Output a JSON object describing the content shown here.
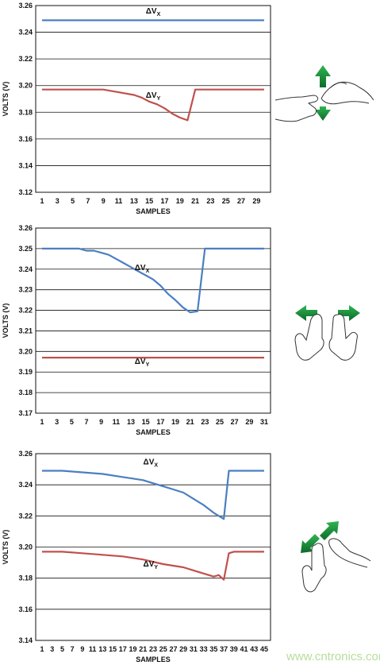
{
  "watermark": "www.cntronics.com",
  "colors": {
    "vx": "#4a7fc1",
    "vy": "#c0504d",
    "grid": "#111111",
    "arrow": "#1c8a3c"
  },
  "gestures": [
    "vertical-drag-gesture",
    "horizontal-pinch-gesture",
    "diagonal-pinch-gesture"
  ],
  "chart_data": [
    {
      "type": "line",
      "xlabel": "SAMPLES",
      "ylabel": "VOLTS (V)",
      "xlim": [
        1,
        30
      ],
      "ylim": [
        3.12,
        3.26
      ],
      "yticks": [
        "3.12",
        "3.14",
        "3.16",
        "3.18",
        "3.20",
        "3.22",
        "3.24",
        "3.26"
      ],
      "xticks": [
        "1",
        "3",
        "5",
        "7",
        "9",
        "11",
        "13",
        "15",
        "17",
        "19",
        "21",
        "23",
        "25",
        "27",
        "29"
      ],
      "series": [
        {
          "name": "ΔV",
          "sub": "X",
          "label_at": [
            15.5,
            3.254
          ],
          "x": [
            1,
            30
          ],
          "y": [
            3.249,
            3.249
          ]
        },
        {
          "name": "ΔV",
          "sub": "Y",
          "label_at": [
            15.5,
            3.191
          ],
          "x": [
            1,
            2,
            3,
            4,
            5,
            6,
            7,
            8,
            9,
            10,
            11,
            12,
            13,
            14,
            15,
            16,
            17,
            18,
            19,
            20,
            21,
            22,
            23,
            24,
            25,
            26,
            27,
            28,
            29,
            30
          ],
          "y": [
            3.197,
            3.197,
            3.197,
            3.197,
            3.197,
            3.197,
            3.197,
            3.197,
            3.197,
            3.196,
            3.195,
            3.194,
            3.193,
            3.191,
            3.188,
            3.186,
            3.183,
            3.179,
            3.176,
            3.174,
            3.197,
            3.197,
            3.197,
            3.197,
            3.197,
            3.197,
            3.197,
            3.197,
            3.197,
            3.197
          ]
        }
      ]
    },
    {
      "type": "line",
      "xlabel": "SAMPLES",
      "ylabel": "VOLTS (V)",
      "xlim": [
        1,
        31
      ],
      "ylim": [
        3.17,
        3.26
      ],
      "yticks": [
        "3.17",
        "3.18",
        "3.19",
        "3.20",
        "3.21",
        "3.22",
        "3.23",
        "3.24",
        "3.25",
        "3.26"
      ],
      "xticks": [
        "1",
        "3",
        "5",
        "7",
        "9",
        "11",
        "13",
        "15",
        "17",
        "19",
        "21",
        "23",
        "25",
        "27",
        "29",
        "31"
      ],
      "series": [
        {
          "name": "ΔV",
          "sub": "X",
          "label_at": [
            14.5,
            3.2395
          ],
          "x": [
            1,
            2,
            3,
            4,
            5,
            6,
            7,
            8,
            9,
            10,
            11,
            12,
            13,
            14,
            15,
            16,
            17,
            18,
            19,
            20,
            21,
            22,
            23,
            24,
            25,
            26,
            27,
            28,
            29,
            30,
            31
          ],
          "y": [
            3.25,
            3.25,
            3.25,
            3.25,
            3.25,
            3.25,
            3.249,
            3.249,
            3.248,
            3.247,
            3.245,
            3.243,
            3.241,
            3.239,
            3.237,
            3.235,
            3.232,
            3.228,
            3.225,
            3.2215,
            3.219,
            3.2195,
            3.25,
            3.25,
            3.25,
            3.25,
            3.25,
            3.25,
            3.25,
            3.25,
            3.25
          ]
        },
        {
          "name": "ΔV",
          "sub": "Y",
          "label_at": [
            14.5,
            3.194
          ],
          "x": [
            1,
            31
          ],
          "y": [
            3.197,
            3.197
          ]
        }
      ]
    },
    {
      "type": "line",
      "xlabel": "SAMPLES",
      "ylabel": "VOLTS (V)",
      "xlim": [
        1,
        45
      ],
      "ylim": [
        3.14,
        3.26
      ],
      "yticks": [
        "3.14",
        "3.16",
        "3.18",
        "3.20",
        "3.22",
        "3.24",
        "3.26"
      ],
      "xticks": [
        "1",
        "3",
        "5",
        "7",
        "9",
        "11",
        "13",
        "15",
        "17",
        "19",
        "21",
        "23",
        "25",
        "27",
        "29",
        "31",
        "33",
        "35",
        "37",
        "39",
        "41",
        "43",
        "45"
      ],
      "series": [
        {
          "name": "ΔV",
          "sub": "X",
          "label_at": [
            22.5,
            3.253
          ],
          "x": [
            1,
            5,
            9,
            13,
            17,
            19,
            21,
            23,
            25,
            27,
            29,
            31,
            33,
            35,
            36,
            37,
            38,
            39,
            45
          ],
          "y": [
            3.249,
            3.249,
            3.248,
            3.247,
            3.245,
            3.244,
            3.243,
            3.241,
            3.239,
            3.237,
            3.235,
            3.231,
            3.227,
            3.222,
            3.22,
            3.218,
            3.249,
            3.249,
            3.249
          ]
        },
        {
          "name": "ΔV",
          "sub": "Y",
          "label_at": [
            22.5,
            3.1875
          ],
          "x": [
            1,
            5,
            9,
            13,
            17,
            21,
            25,
            29,
            31,
            33,
            35,
            36,
            37,
            38,
            39,
            45
          ],
          "y": [
            3.197,
            3.197,
            3.196,
            3.195,
            3.194,
            3.192,
            3.189,
            3.187,
            3.185,
            3.183,
            3.181,
            3.182,
            3.179,
            3.196,
            3.197,
            3.197
          ]
        }
      ]
    }
  ]
}
